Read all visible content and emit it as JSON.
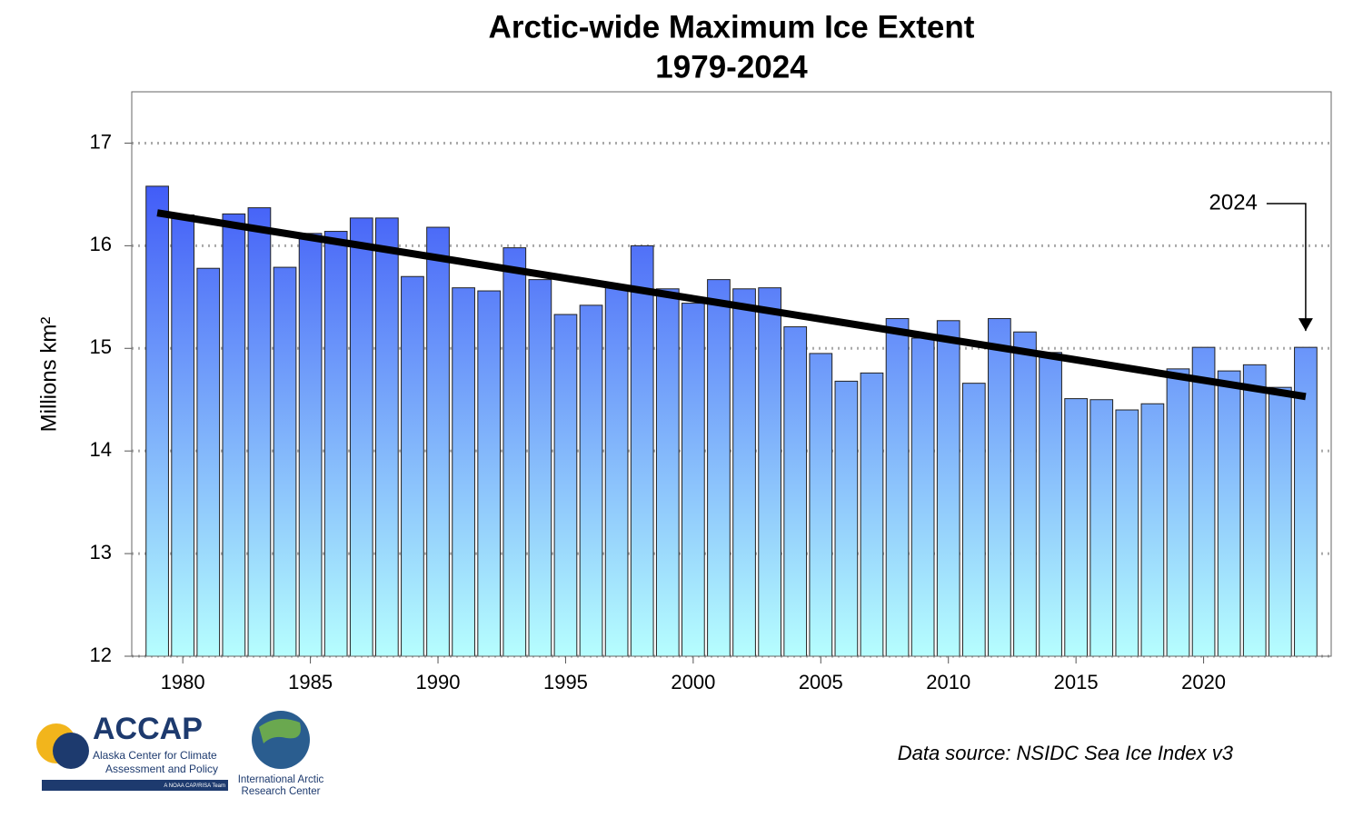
{
  "chart_data": {
    "type": "bar",
    "title": "Arctic-wide Maximum Ice Extent",
    "subtitle": "1979-2024",
    "y_label": "Millions km²",
    "x": [
      1979,
      1980,
      1981,
      1982,
      1983,
      1984,
      1985,
      1986,
      1987,
      1988,
      1989,
      1990,
      1991,
      1992,
      1993,
      1994,
      1995,
      1996,
      1997,
      1998,
      1999,
      2000,
      2001,
      2002,
      2003,
      2004,
      2005,
      2006,
      2007,
      2008,
      2009,
      2010,
      2011,
      2012,
      2013,
      2014,
      2015,
      2016,
      2017,
      2018,
      2019,
      2020,
      2021,
      2022,
      2023,
      2024
    ],
    "values": [
      16.58,
      16.3,
      15.78,
      16.31,
      16.37,
      15.79,
      16.12,
      16.14,
      16.27,
      16.27,
      15.7,
      16.18,
      15.59,
      15.56,
      15.98,
      15.67,
      15.33,
      15.42,
      15.6,
      16.0,
      15.58,
      15.44,
      15.67,
      15.58,
      15.59,
      15.21,
      14.95,
      14.68,
      14.76,
      15.29,
      15.1,
      15.27,
      14.66,
      15.29,
      15.16,
      14.96,
      14.51,
      14.5,
      14.4,
      14.46,
      14.8,
      15.01,
      14.78,
      14.84,
      14.62,
      15.01
    ],
    "color_top": "#2a3cf6",
    "color_bottom": "#b6fefe",
    "trend": {
      "x": [
        1979,
        2024
      ],
      "values": [
        16.32,
        14.53
      ],
      "color": "#000000"
    },
    "xlim": [
      1978,
      2025
    ],
    "xticks": [
      1980,
      1985,
      1990,
      1995,
      2000,
      2005,
      2010,
      2015,
      2020
    ],
    "ylim": [
      12,
      17.5
    ],
    "yticks": [
      12,
      13,
      14,
      15,
      16,
      17
    ],
    "grid": true,
    "annotation": {
      "text": "2024",
      "x": 2024
    },
    "source": "Data source: NSIDC Sea Ice Index v3"
  },
  "logos": {
    "accap": {
      "name": "ACCAP",
      "line1": "Alaska Center for Climate",
      "line2": "Assessment and Policy",
      "tag": "A NOAA CAP/RISA Team"
    },
    "iarc": {
      "line1": "International Arctic",
      "line2": "Research Center"
    }
  }
}
